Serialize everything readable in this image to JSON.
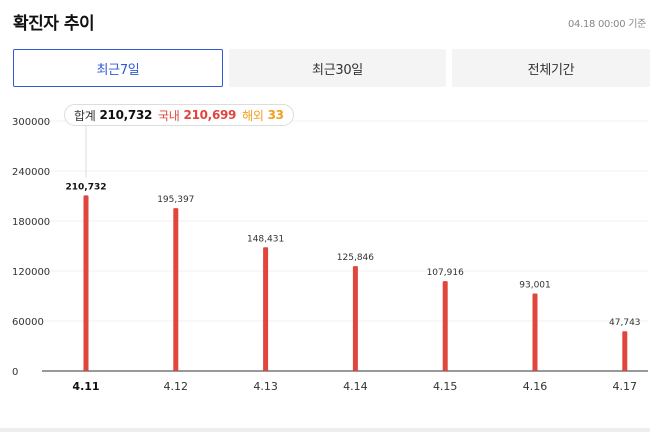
{
  "header": {
    "title": "확진자 추이",
    "timestamp": "04.18 00:00 기준"
  },
  "tabs": [
    {
      "label": "최근7일",
      "active": true
    },
    {
      "label": "최근30일",
      "active": false
    },
    {
      "label": "전체기간",
      "active": false
    }
  ],
  "tooltip": {
    "total_label": "합계",
    "total_value": "210,732",
    "domestic_label": "국내",
    "domestic_value": "210,699",
    "overseas_label": "해외",
    "overseas_value": "33"
  },
  "colors": {
    "accent": "#2f5bd3",
    "bar": "#e0463d",
    "domestic": "#e0463d",
    "overseas": "#f0a020"
  },
  "chart_data": {
    "type": "bar",
    "categories": [
      "4.11",
      "4.12",
      "4.13",
      "4.14",
      "4.15",
      "4.16",
      "4.17"
    ],
    "values": [
      210732,
      195397,
      148431,
      125846,
      107916,
      93001,
      47743
    ],
    "value_labels": [
      "210,732",
      "195,397",
      "148,431",
      "125,846",
      "107,916",
      "93,001",
      "47,743"
    ],
    "selected_index": 0,
    "yticks": [
      "0",
      "60000",
      "120000",
      "180000",
      "240000",
      "300000"
    ],
    "ylim": [
      0,
      300000
    ],
    "grid": true
  }
}
